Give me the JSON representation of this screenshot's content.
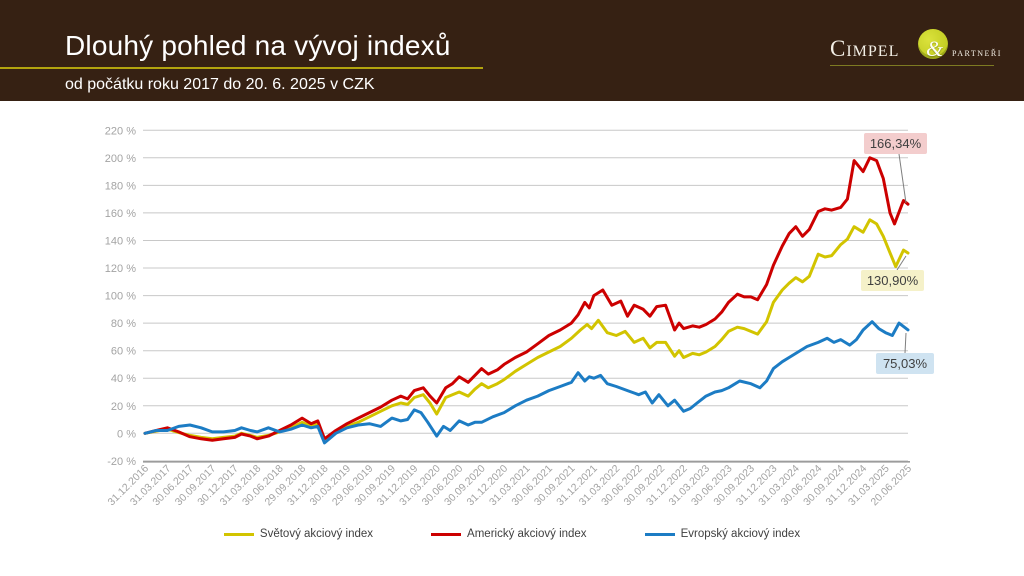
{
  "slide": {
    "title": "Dlouhý pohled na vývoj indexů",
    "subtitle": "od počátku roku 2017 do 20. 6. 2025 v CZK",
    "logo": {
      "cimpel": "Cimpel",
      "amp": "&",
      "partneri": "partneři"
    }
  },
  "colors": {
    "header_background": "#362113",
    "title_rule": "#b3a40e",
    "grid": "#c8c8c8",
    "axis": "#9c9c9c",
    "tick_text": "#a3a3a3",
    "label_text": "#3f3f3f",
    "world_line": "#d2c400",
    "us_line": "#cc0000",
    "europe_line": "#1c7cc4"
  },
  "chart_data": {
    "type": "line",
    "title": "",
    "xlabel": "",
    "ylabel": "",
    "ylim": [
      -20,
      220
    ],
    "ytick_step": 20,
    "grid": true,
    "legend_position": "bottom",
    "yticks": [
      {
        "value": 220,
        "label": "220 %"
      },
      {
        "value": 200,
        "label": "200 %"
      },
      {
        "value": 180,
        "label": "180 %"
      },
      {
        "value": 160,
        "label": "160 %"
      },
      {
        "value": 140,
        "label": "140 %"
      },
      {
        "value": 120,
        "label": "120 %"
      },
      {
        "value": 100,
        "label": "100 %"
      },
      {
        "value": 80,
        "label": "80 %"
      },
      {
        "value": 60,
        "label": "60 %"
      },
      {
        "value": 40,
        "label": "40 %"
      },
      {
        "value": 20,
        "label": "20 %"
      },
      {
        "value": 0,
        "label": "0 %"
      },
      {
        "value": -20,
        "label": "-20 %"
      }
    ],
    "categories": [
      "31.12.2016",
      "31.03.2017",
      "30.06.2017",
      "30.09.2017",
      "30.12.2017",
      "31.03.2018",
      "30.06.2018",
      "29.09.2018",
      "31.12.2018",
      "30.03.2019",
      "29.06.2019",
      "30.09.2019",
      "31.12.2019",
      "31.03.2020",
      "30.06.2020",
      "30.09.2020",
      "31.12.2020",
      "31.03.2021",
      "30.06.2021",
      "30.09.2021",
      "31.12.2021",
      "31.03.2022",
      "30.06.2022",
      "30.09.2022",
      "31.12.2022",
      "31.03.2023",
      "30.06.2023",
      "30.09.2023",
      "31.12.2023",
      "31.03.2024",
      "30.06.2024",
      "30.09.2024",
      "31.12.2024",
      "31.03.2025",
      "20.06.2025"
    ],
    "series": [
      {
        "name": "Světový akciový index",
        "color": "#d2c400",
        "end_value": 130.9,
        "end_label": "130,90%",
        "end_label_bg": "#f5f1c9",
        "points": [
          [
            0,
            0
          ],
          [
            0.5,
            1.5
          ],
          [
            1,
            3
          ],
          [
            1.5,
            0.5
          ],
          [
            2,
            -1.5
          ],
          [
            2.5,
            -3
          ],
          [
            3,
            -4
          ],
          [
            3.5,
            -3
          ],
          [
            4,
            -2
          ],
          [
            4.3,
            0
          ],
          [
            4.7,
            -1.5
          ],
          [
            5,
            -3
          ],
          [
            5.5,
            -1.5
          ],
          [
            6,
            1
          ],
          [
            6.5,
            4
          ],
          [
            7,
            8
          ],
          [
            7.4,
            5
          ],
          [
            7.7,
            7
          ],
          [
            8,
            -4
          ],
          [
            8.5,
            1
          ],
          [
            9,
            5
          ],
          [
            9.5,
            8
          ],
          [
            10,
            12
          ],
          [
            10.5,
            16
          ],
          [
            11,
            20
          ],
          [
            11.4,
            22
          ],
          [
            11.7,
            21
          ],
          [
            12,
            26
          ],
          [
            12.4,
            28
          ],
          [
            12.7,
            22
          ],
          [
            13,
            14
          ],
          [
            13.4,
            26
          ],
          [
            13.7,
            28
          ],
          [
            14,
            30
          ],
          [
            14.4,
            27
          ],
          [
            14.7,
            32
          ],
          [
            15,
            36
          ],
          [
            15.3,
            33
          ],
          [
            15.7,
            36
          ],
          [
            16,
            39
          ],
          [
            16.5,
            45
          ],
          [
            17,
            50
          ],
          [
            17.5,
            55
          ],
          [
            18,
            59
          ],
          [
            18.5,
            63
          ],
          [
            19,
            69
          ],
          [
            19.4,
            75
          ],
          [
            19.7,
            79
          ],
          [
            19.9,
            76
          ],
          [
            20.2,
            82
          ],
          [
            20.6,
            73
          ],
          [
            21,
            71
          ],
          [
            21.4,
            74
          ],
          [
            21.8,
            66
          ],
          [
            22.2,
            69
          ],
          [
            22.5,
            62
          ],
          [
            22.8,
            66
          ],
          [
            23.2,
            66
          ],
          [
            23.6,
            56
          ],
          [
            23.8,
            60
          ],
          [
            24,
            55
          ],
          [
            24.4,
            58
          ],
          [
            24.7,
            57
          ],
          [
            25,
            59
          ],
          [
            25.4,
            63
          ],
          [
            25.7,
            68
          ],
          [
            26,
            74
          ],
          [
            26.4,
            77
          ],
          [
            26.7,
            76
          ],
          [
            27,
            74
          ],
          [
            27.3,
            72
          ],
          [
            27.7,
            81
          ],
          [
            28,
            95
          ],
          [
            28.4,
            104
          ],
          [
            28.7,
            109
          ],
          [
            29,
            113
          ],
          [
            29.3,
            110
          ],
          [
            29.6,
            114
          ],
          [
            30,
            130
          ],
          [
            30.3,
            128
          ],
          [
            30.6,
            129
          ],
          [
            31,
            137
          ],
          [
            31.3,
            141
          ],
          [
            31.6,
            150
          ],
          [
            32,
            146
          ],
          [
            32.3,
            155
          ],
          [
            32.6,
            152
          ],
          [
            32.9,
            143
          ],
          [
            33.2,
            131
          ],
          [
            33.45,
            121
          ],
          [
            33.8,
            133
          ],
          [
            34,
            130.9
          ]
        ]
      },
      {
        "name": "Americký akciový index",
        "color": "#cc0000",
        "end_value": 166.34,
        "end_label": "166,34%",
        "end_label_bg": "#f3cdcd",
        "points": [
          [
            0,
            0
          ],
          [
            0.5,
            2
          ],
          [
            1,
            4
          ],
          [
            1.5,
            1
          ],
          [
            2,
            -2.5
          ],
          [
            2.5,
            -4
          ],
          [
            3,
            -5
          ],
          [
            3.5,
            -4
          ],
          [
            4,
            -3
          ],
          [
            4.3,
            -0.5
          ],
          [
            4.7,
            -2
          ],
          [
            5,
            -4
          ],
          [
            5.5,
            -2
          ],
          [
            6,
            2
          ],
          [
            6.5,
            6
          ],
          [
            7,
            11
          ],
          [
            7.4,
            7
          ],
          [
            7.7,
            9
          ],
          [
            8,
            -4
          ],
          [
            8.5,
            2
          ],
          [
            9,
            7
          ],
          [
            9.5,
            11
          ],
          [
            10,
            15
          ],
          [
            10.5,
            19
          ],
          [
            11,
            24
          ],
          [
            11.4,
            27
          ],
          [
            11.7,
            25
          ],
          [
            12,
            31
          ],
          [
            12.4,
            33
          ],
          [
            12.7,
            27
          ],
          [
            13,
            22
          ],
          [
            13.4,
            33
          ],
          [
            13.7,
            36
          ],
          [
            14,
            41
          ],
          [
            14.4,
            37
          ],
          [
            14.7,
            42
          ],
          [
            15,
            47
          ],
          [
            15.3,
            43
          ],
          [
            15.7,
            46
          ],
          [
            16,
            50
          ],
          [
            16.5,
            55
          ],
          [
            17,
            59
          ],
          [
            17.5,
            65
          ],
          [
            18,
            71
          ],
          [
            18.5,
            75
          ],
          [
            19,
            80
          ],
          [
            19.3,
            86
          ],
          [
            19.6,
            95
          ],
          [
            19.8,
            91
          ],
          [
            20,
            100
          ],
          [
            20.4,
            104
          ],
          [
            20.8,
            93
          ],
          [
            21.2,
            96
          ],
          [
            21.5,
            85
          ],
          [
            21.8,
            93
          ],
          [
            22.2,
            90
          ],
          [
            22.5,
            85
          ],
          [
            22.8,
            92
          ],
          [
            23.2,
            93
          ],
          [
            23.6,
            75
          ],
          [
            23.8,
            80
          ],
          [
            24,
            76
          ],
          [
            24.4,
            78
          ],
          [
            24.7,
            77
          ],
          [
            25,
            79
          ],
          [
            25.4,
            83
          ],
          [
            25.7,
            88
          ],
          [
            26,
            95
          ],
          [
            26.4,
            101
          ],
          [
            26.7,
            99
          ],
          [
            27,
            99
          ],
          [
            27.3,
            97
          ],
          [
            27.7,
            108
          ],
          [
            28,
            122
          ],
          [
            28.4,
            136
          ],
          [
            28.7,
            145
          ],
          [
            29,
            150
          ],
          [
            29.3,
            143
          ],
          [
            29.6,
            148
          ],
          [
            30,
            161
          ],
          [
            30.3,
            163
          ],
          [
            30.6,
            162
          ],
          [
            31,
            164
          ],
          [
            31.3,
            170
          ],
          [
            31.6,
            198
          ],
          [
            32,
            190
          ],
          [
            32.3,
            200
          ],
          [
            32.6,
            198
          ],
          [
            32.9,
            185
          ],
          [
            33.2,
            160
          ],
          [
            33.4,
            152
          ],
          [
            33.8,
            169
          ],
          [
            34,
            166.34
          ]
        ]
      },
      {
        "name": "Evropský akciový index",
        "color": "#1c7cc4",
        "end_value": 75.03,
        "end_label": "75,03%",
        "end_label_bg": "#cfe3f1",
        "points": [
          [
            0,
            0
          ],
          [
            0.5,
            2
          ],
          [
            1,
            2
          ],
          [
            1.5,
            5
          ],
          [
            2,
            6
          ],
          [
            2.5,
            4
          ],
          [
            3,
            1
          ],
          [
            3.5,
            1
          ],
          [
            4,
            2
          ],
          [
            4.3,
            4
          ],
          [
            4.7,
            2
          ],
          [
            5,
            1
          ],
          [
            5.5,
            4
          ],
          [
            6,
            1
          ],
          [
            6.5,
            3
          ],
          [
            7,
            6
          ],
          [
            7.4,
            4
          ],
          [
            7.7,
            5
          ],
          [
            8,
            -7
          ],
          [
            8.5,
            0
          ],
          [
            9,
            4
          ],
          [
            9.5,
            6
          ],
          [
            10,
            7
          ],
          [
            10.5,
            5
          ],
          [
            11,
            11
          ],
          [
            11.4,
            9
          ],
          [
            11.7,
            10
          ],
          [
            12,
            17
          ],
          [
            12.3,
            15
          ],
          [
            12.6,
            8
          ],
          [
            13,
            -2
          ],
          [
            13.3,
            5
          ],
          [
            13.6,
            2
          ],
          [
            14,
            9
          ],
          [
            14.4,
            6
          ],
          [
            14.7,
            8
          ],
          [
            15,
            8
          ],
          [
            15.5,
            12
          ],
          [
            16,
            15
          ],
          [
            16.5,
            20
          ],
          [
            17,
            24
          ],
          [
            17.5,
            27
          ],
          [
            18,
            31
          ],
          [
            18.5,
            34
          ],
          [
            19,
            37
          ],
          [
            19.3,
            44
          ],
          [
            19.6,
            38
          ],
          [
            19.8,
            41
          ],
          [
            20,
            40
          ],
          [
            20.3,
            42
          ],
          [
            20.6,
            36
          ],
          [
            21,
            34
          ],
          [
            21.5,
            31
          ],
          [
            22,
            28
          ],
          [
            22.3,
            30
          ],
          [
            22.6,
            22
          ],
          [
            22.9,
            28
          ],
          [
            23.3,
            20
          ],
          [
            23.6,
            24
          ],
          [
            24,
            16
          ],
          [
            24.3,
            18
          ],
          [
            24.6,
            22
          ],
          [
            25,
            27
          ],
          [
            25.4,
            30
          ],
          [
            25.7,
            31
          ],
          [
            26,
            33
          ],
          [
            26.5,
            38
          ],
          [
            27,
            36
          ],
          [
            27.4,
            33
          ],
          [
            27.7,
            38
          ],
          [
            28,
            47
          ],
          [
            28.4,
            52
          ],
          [
            28.7,
            55
          ],
          [
            29,
            58
          ],
          [
            29.5,
            63
          ],
          [
            30,
            66
          ],
          [
            30.4,
            69
          ],
          [
            30.7,
            66
          ],
          [
            31,
            68
          ],
          [
            31.4,
            64
          ],
          [
            31.7,
            68
          ],
          [
            32,
            75
          ],
          [
            32.4,
            81
          ],
          [
            32.7,
            76
          ],
          [
            33,
            73
          ],
          [
            33.3,
            71
          ],
          [
            33.6,
            80
          ],
          [
            34,
            75.03
          ]
        ]
      }
    ]
  }
}
